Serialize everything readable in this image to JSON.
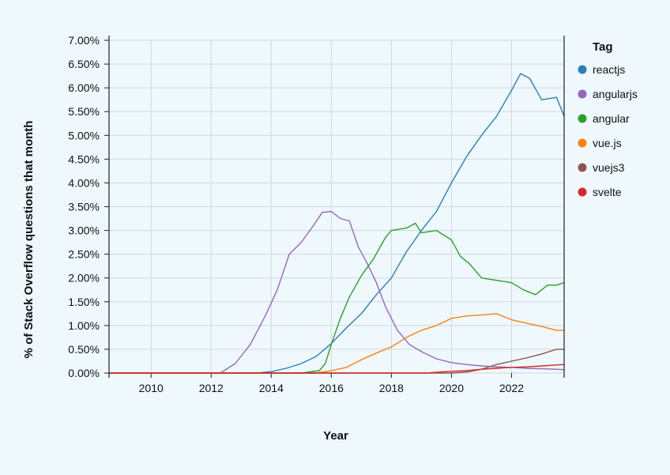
{
  "chart_data": {
    "type": "line",
    "xlabel": "Year",
    "ylabel": "% of Stack Overflow questions that month",
    "legend_title": "Tag",
    "legend_position": "right",
    "grid": true,
    "xlim": [
      2008.6,
      2023.75
    ],
    "ylim": [
      0,
      7
    ],
    "x_ticks": [
      2010,
      2012,
      2014,
      2016,
      2018,
      2020,
      2022
    ],
    "x_tick_labels": [
      "2010",
      "2012",
      "2014",
      "2016",
      "2018",
      "2020",
      "2022"
    ],
    "y_ticks": [
      0,
      0.5,
      1,
      1.5,
      2,
      2.5,
      3,
      3.5,
      4,
      4.5,
      5,
      5.5,
      6,
      6.5,
      7
    ],
    "y_tick_labels": [
      "0.00%",
      "0.50%",
      "1.00%",
      "1.50%",
      "2.00%",
      "2.50%",
      "3.00%",
      "3.50%",
      "4.00%",
      "4.50%",
      "5.00%",
      "5.50%",
      "6.00%",
      "6.50%",
      "7.00%"
    ],
    "series": [
      {
        "name": "reactjs",
        "color": "#2a7fb8",
        "x": [
          2008.6,
          2013.5,
          2014.0,
          2014.5,
          2015.0,
          2015.5,
          2016.0,
          2016.5,
          2017.0,
          2017.5,
          2018.0,
          2018.5,
          2019.0,
          2019.5,
          2020.0,
          2020.5,
          2021.0,
          2021.5,
          2022.0,
          2022.3,
          2022.6,
          2023.0,
          2023.5,
          2023.75
        ],
        "y": [
          0,
          0,
          0.03,
          0.1,
          0.2,
          0.35,
          0.62,
          0.95,
          1.25,
          1.65,
          2.0,
          2.55,
          3.0,
          3.4,
          4.0,
          4.55,
          5.0,
          5.4,
          5.95,
          6.3,
          6.2,
          5.75,
          5.8,
          5.4
        ]
      },
      {
        "name": "angularjs",
        "color": "#9467bd",
        "x": [
          2008.6,
          2012.3,
          2012.8,
          2013.3,
          2013.8,
          2014.2,
          2014.6,
          2015.0,
          2015.4,
          2015.7,
          2016.0,
          2016.3,
          2016.6,
          2016.9,
          2017.2,
          2017.5,
          2017.8,
          2018.2,
          2018.6,
          2019.0,
          2019.5,
          2020.0,
          2020.5,
          2021.0,
          2021.5,
          2022.0,
          2022.5,
          2023.0,
          2023.5,
          2023.75
        ],
        "y": [
          0,
          0,
          0.2,
          0.6,
          1.2,
          1.75,
          2.5,
          2.75,
          3.1,
          3.38,
          3.4,
          3.25,
          3.2,
          2.65,
          2.3,
          1.9,
          1.4,
          0.9,
          0.6,
          0.45,
          0.3,
          0.22,
          0.18,
          0.15,
          0.13,
          0.12,
          0.1,
          0.09,
          0.08,
          0.07
        ]
      },
      {
        "name": "angular",
        "color": "#2ca02c",
        "x": [
          2008.6,
          2015.0,
          2015.6,
          2015.8,
          2016.0,
          2016.3,
          2016.6,
          2017.0,
          2017.4,
          2017.8,
          2018.0,
          2018.5,
          2018.8,
          2019.0,
          2019.5,
          2020.0,
          2020.3,
          2020.6,
          2021.0,
          2021.5,
          2022.0,
          2022.4,
          2022.8,
          2023.2,
          2023.5,
          2023.75
        ],
        "y": [
          0,
          0,
          0.05,
          0.2,
          0.6,
          1.15,
          1.6,
          2.05,
          2.4,
          2.85,
          3.0,
          3.05,
          3.15,
          2.95,
          3.0,
          2.8,
          2.45,
          2.3,
          2.0,
          1.95,
          1.9,
          1.75,
          1.65,
          1.85,
          1.85,
          1.9
        ]
      },
      {
        "name": "vue.js",
        "color": "#ff7f0e",
        "x": [
          2008.6,
          2015.5,
          2016.0,
          2016.5,
          2017.0,
          2017.5,
          2018.0,
          2018.5,
          2019.0,
          2019.5,
          2020.0,
          2020.5,
          2021.0,
          2021.5,
          2022.0,
          2022.5,
          2023.0,
          2023.5,
          2023.75
        ],
        "y": [
          0,
          0,
          0.05,
          0.12,
          0.28,
          0.42,
          0.55,
          0.75,
          0.9,
          1.0,
          1.15,
          1.2,
          1.22,
          1.25,
          1.12,
          1.05,
          0.98,
          0.9,
          0.9
        ]
      },
      {
        "name": "vuejs3",
        "color": "#8c564b",
        "x": [
          2008.6,
          2020.0,
          2020.5,
          2021.0,
          2021.5,
          2022.0,
          2022.5,
          2023.0,
          2023.5,
          2023.75
        ],
        "y": [
          0,
          0,
          0.02,
          0.08,
          0.18,
          0.25,
          0.32,
          0.4,
          0.5,
          0.5
        ]
      },
      {
        "name": "svelte",
        "color": "#d62728",
        "x": [
          2008.6,
          2019.2,
          2019.8,
          2020.5,
          2021.0,
          2021.5,
          2022.0,
          2022.5,
          2023.0,
          2023.5,
          2023.75
        ],
        "y": [
          0,
          0,
          0.03,
          0.05,
          0.08,
          0.1,
          0.12,
          0.13,
          0.15,
          0.17,
          0.18
        ]
      }
    ]
  }
}
